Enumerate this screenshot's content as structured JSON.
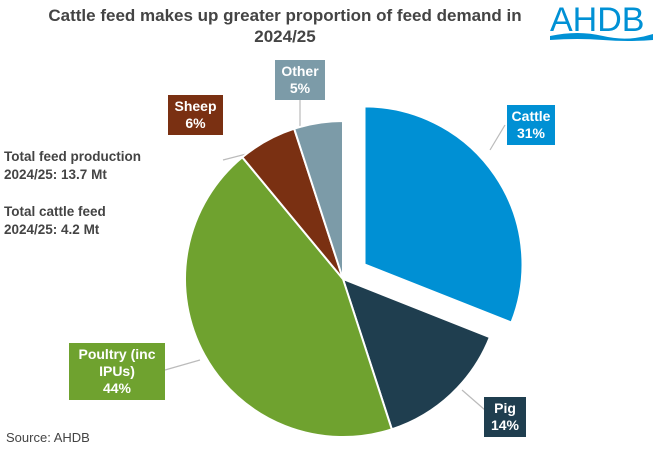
{
  "chart_data": {
    "type": "pie",
    "title": "Cattle feed makes up greater proportion of feed demand in 2024/25",
    "slices": [
      {
        "label": "Cattle",
        "value": 31,
        "display": "31%",
        "color": "#0090d4",
        "exploded": true
      },
      {
        "label": "Pig",
        "value": 14,
        "display": "14%",
        "color": "#1f3e4f",
        "exploded": false
      },
      {
        "label": "Poultry (inc IPUs)",
        "value": 44,
        "display": "44%",
        "color": "#6fa22f",
        "exploded": false
      },
      {
        "label": "Sheep",
        "value": 6,
        "display": "6%",
        "color": "#7a3012",
        "exploded": false
      },
      {
        "label": "Other",
        "value": 5,
        "display": "5%",
        "color": "#7c9ba8",
        "exploded": false
      }
    ],
    "start_angle": "12 o'clock",
    "direction": "clockwise"
  },
  "annotations": {
    "production_line1": "Total feed production",
    "production_line2": "2024/25: 13.7 Mt",
    "cattle_line1": "Total cattle feed",
    "cattle_line2": "2024/25: 4.2 Mt"
  },
  "source": "Source: AHDB",
  "logo": {
    "text": "AHDB",
    "color": "#0091d5"
  }
}
